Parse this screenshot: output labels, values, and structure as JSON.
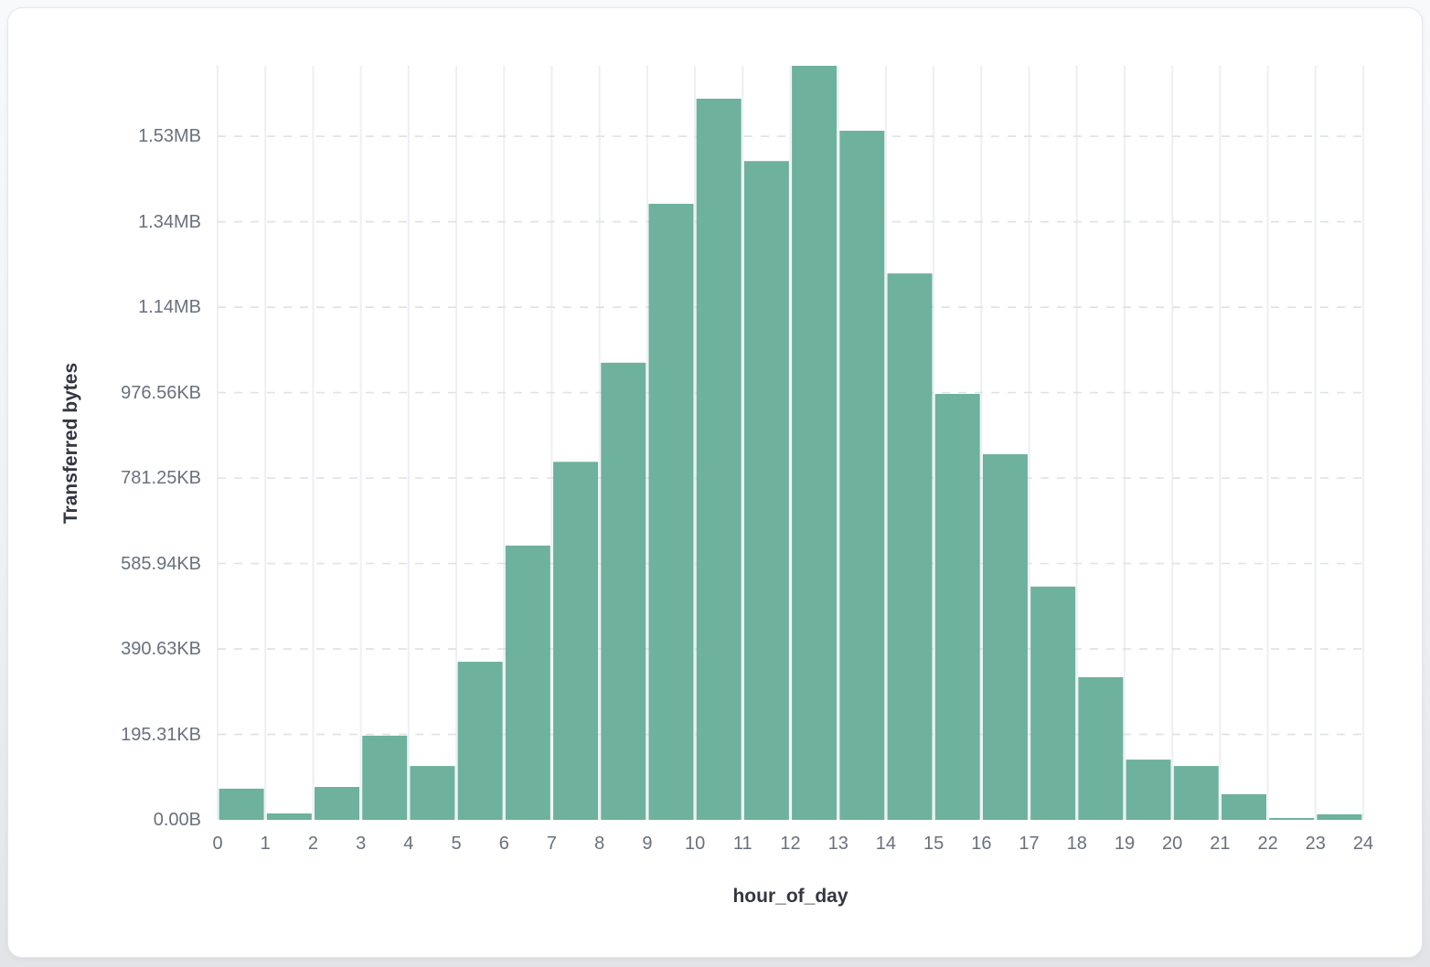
{
  "chart_data": {
    "type": "bar",
    "title": "",
    "xlabel": "hour_of_day",
    "ylabel": "Transferred bytes",
    "unit": "bytes",
    "categories": [
      0,
      1,
      2,
      3,
      4,
      5,
      6,
      7,
      8,
      9,
      10,
      11,
      12,
      13,
      14,
      15,
      16,
      17,
      18,
      19,
      20,
      21,
      22,
      23
    ],
    "values": [
      73000,
      15000,
      77000,
      197000,
      126000,
      370000,
      642000,
      838000,
      1070000,
      1442000,
      1688000,
      1542000,
      1765000,
      1613000,
      1279000,
      997000,
      856000,
      546000,
      334000,
      141000,
      126000,
      60000,
      4300,
      13000
    ],
    "xlim": [
      0,
      24
    ],
    "ylim": [
      0,
      1765000
    ],
    "x_ticks": [
      {
        "value": 0,
        "label": "0"
      },
      {
        "value": 1,
        "label": "1"
      },
      {
        "value": 2,
        "label": "2"
      },
      {
        "value": 3,
        "label": "3"
      },
      {
        "value": 4,
        "label": "4"
      },
      {
        "value": 5,
        "label": "5"
      },
      {
        "value": 6,
        "label": "6"
      },
      {
        "value": 7,
        "label": "7"
      },
      {
        "value": 8,
        "label": "8"
      },
      {
        "value": 9,
        "label": "9"
      },
      {
        "value": 10,
        "label": "10"
      },
      {
        "value": 11,
        "label": "11"
      },
      {
        "value": 12,
        "label": "12"
      },
      {
        "value": 13,
        "label": "13"
      },
      {
        "value": 14,
        "label": "14"
      },
      {
        "value": 15,
        "label": "15"
      },
      {
        "value": 16,
        "label": "16"
      },
      {
        "value": 17,
        "label": "17"
      },
      {
        "value": 18,
        "label": "18"
      },
      {
        "value": 19,
        "label": "19"
      },
      {
        "value": 20,
        "label": "20"
      },
      {
        "value": 21,
        "label": "21"
      },
      {
        "value": 22,
        "label": "22"
      },
      {
        "value": 23,
        "label": "23"
      },
      {
        "value": 24,
        "label": "24"
      }
    ],
    "y_ticks": [
      {
        "value": 0,
        "label": "0.00B"
      },
      {
        "value": 200000,
        "label": "195.31KB"
      },
      {
        "value": 400000,
        "label": "390.63KB"
      },
      {
        "value": 600000,
        "label": "585.94KB"
      },
      {
        "value": 800000,
        "label": "781.25KB"
      },
      {
        "value": 1000000,
        "label": "976.56KB"
      },
      {
        "value": 1200000,
        "label": "1.14MB"
      },
      {
        "value": 1400000,
        "label": "1.34MB"
      },
      {
        "value": 1600000,
        "label": "1.53MB"
      }
    ],
    "grid": {
      "horizontal": "dashed",
      "vertical": "solid"
    },
    "legend": "none",
    "colors": {
      "bar": "#6EB19D",
      "grid_vertical": "#EDEFF3",
      "grid_horizontal": "#DFE3E8",
      "tick_text": "#69707D",
      "axis_title_text": "#343741",
      "card_background": "#FFFFFF"
    }
  }
}
